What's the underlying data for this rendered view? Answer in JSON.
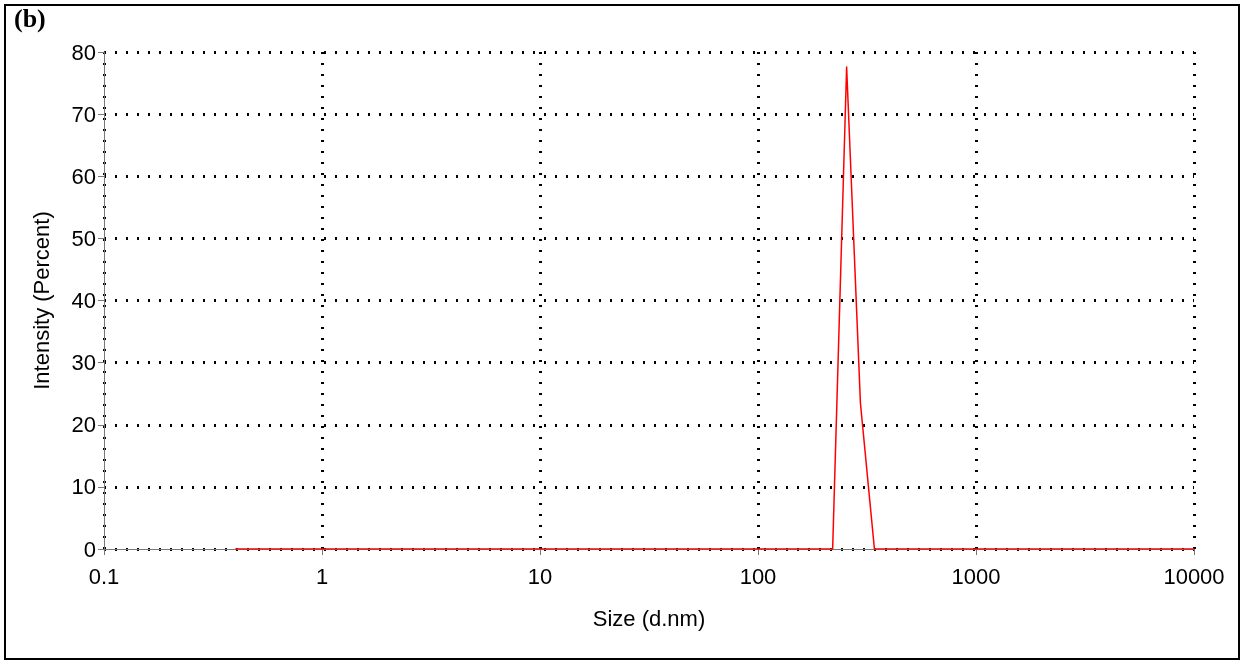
{
  "chart_data": {
    "type": "line",
    "xlabel": "Size (d.nm)",
    "ylabel": "Intensity (Percent)",
    "annotations": [
      "(b)"
    ],
    "log": "x",
    "xlim": [
      0.1,
      10000
    ],
    "xticks": [
      0.1,
      1,
      10,
      100,
      1000,
      10000
    ],
    "ylim": [
      0,
      80
    ],
    "yticks": [
      0,
      10,
      20,
      30,
      40,
      50,
      60,
      70,
      80
    ],
    "grid": true,
    "marker": "none",
    "line_style": "solid",
    "series": [
      {
        "color": "#ff0000",
        "x": [
          0.4,
          220,
          255,
          295,
          342,
          10000
        ],
        "values": [
          0,
          0,
          77.6,
          23.5,
          0,
          0
        ]
      }
    ]
  }
}
